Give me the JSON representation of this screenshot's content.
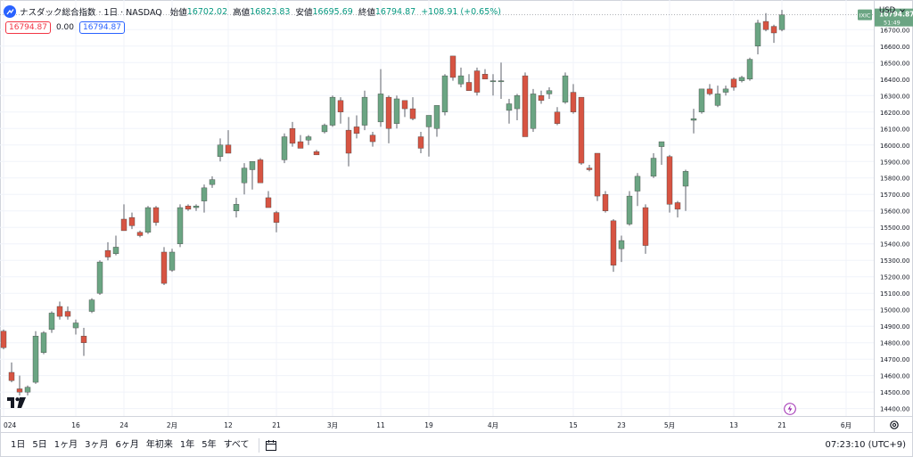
{
  "header": {
    "title": "ナスダック総合指数 · 1日 · NASDAQ",
    "open_label": "始値",
    "open_value": "16702.02",
    "high_label": "高値",
    "high_value": "16823.83",
    "low_label": "安値",
    "low_value": "16695.69",
    "close_label": "終値",
    "close_value": "16794.87",
    "change": "+108.91 (+0.65%)"
  },
  "order_pills": {
    "sell": "16794.87",
    "spread": "0.00",
    "buy": "16794.87"
  },
  "currency": "USD",
  "last_price": {
    "symbol": "IXIC",
    "price": "16794.87",
    "countdown": "51:49"
  },
  "bottom_bar": {
    "ranges": [
      "1日",
      "5日",
      "1ヶ月",
      "3ヶ月",
      "6ヶ月",
      "年初来",
      "1年",
      "5年",
      "すべて"
    ],
    "clock": "07:23:10 (UTC+9)"
  },
  "colors": {
    "up": "#6ba583",
    "down": "#d75442",
    "wick": "#5d606b",
    "grid": "#f0f3fa",
    "accent": "#2962ff"
  },
  "chart_data": {
    "type": "candlestick",
    "y_tick_labels": [
      "14400.00",
      "14500.00",
      "14600.00",
      "14700.00",
      "14800.00",
      "14900.00",
      "15000.00",
      "15100.00",
      "15200.00",
      "15300.00",
      "15400.00",
      "15500.00",
      "15600.00",
      "15700.00",
      "15800.00",
      "15900.00",
      "16000.00",
      "16100.00",
      "16200.00",
      "16300.00",
      "16400.00",
      "16500.00",
      "16600.00",
      "16700.00"
    ],
    "ylim": [
      14355,
      16880
    ],
    "x_tick_labels": [
      {
        "label": "024",
        "index": 0
      },
      {
        "label": "16",
        "index": 9
      },
      {
        "label": "24",
        "index": 15
      },
      {
        "label": "2月",
        "index": 21
      },
      {
        "label": "12",
        "index": 28
      },
      {
        "label": "21",
        "index": 34
      },
      {
        "label": "3月",
        "index": 41
      },
      {
        "label": "11",
        "index": 47
      },
      {
        "label": "19",
        "index": 53
      },
      {
        "label": "4月",
        "index": 61
      },
      {
        "label": "15",
        "index": 71
      },
      {
        "label": "23",
        "index": 77
      },
      {
        "label": "5月",
        "index": 83
      },
      {
        "label": "13",
        "index": 91
      },
      {
        "label": "21",
        "index": 97
      },
      {
        "label": "6月",
        "index": 105
      }
    ],
    "candles": [
      {
        "o": 14870,
        "h": 14880,
        "l": 14760,
        "c": 14770
      },
      {
        "o": 14620,
        "h": 14680,
        "l": 14560,
        "c": 14570
      },
      {
        "o": 14520,
        "h": 14600,
        "l": 14480,
        "c": 14500
      },
      {
        "o": 14500,
        "h": 14540,
        "l": 14480,
        "c": 14530
      },
      {
        "o": 14560,
        "h": 14870,
        "l": 14550,
        "c": 14840
      },
      {
        "o": 14740,
        "h": 14870,
        "l": 14730,
        "c": 14860
      },
      {
        "o": 14880,
        "h": 14990,
        "l": 14860,
        "c": 14980
      },
      {
        "o": 15020,
        "h": 15050,
        "l": 14940,
        "c": 14960
      },
      {
        "o": 14990,
        "h": 15020,
        "l": 14940,
        "c": 14960
      },
      {
        "o": 14890,
        "h": 14940,
        "l": 14850,
        "c": 14920
      },
      {
        "o": 14840,
        "h": 14890,
        "l": 14720,
        "c": 14800
      },
      {
        "o": 14990,
        "h": 15070,
        "l": 14980,
        "c": 15060
      },
      {
        "o": 15100,
        "h": 15300,
        "l": 15090,
        "c": 15290
      },
      {
        "o": 15360,
        "h": 15410,
        "l": 15300,
        "c": 15320
      },
      {
        "o": 15340,
        "h": 15450,
        "l": 15330,
        "c": 15380
      },
      {
        "o": 15550,
        "h": 15640,
        "l": 15480,
        "c": 15480
      },
      {
        "o": 15560,
        "h": 15590,
        "l": 15490,
        "c": 15510
      },
      {
        "o": 15470,
        "h": 15480,
        "l": 15440,
        "c": 15450
      },
      {
        "o": 15470,
        "h": 15630,
        "l": 15460,
        "c": 15620
      },
      {
        "o": 15620,
        "h": 15630,
        "l": 15510,
        "c": 15530
      },
      {
        "o": 15350,
        "h": 15380,
        "l": 15150,
        "c": 15160
      },
      {
        "o": 15240,
        "h": 15370,
        "l": 15230,
        "c": 15350
      },
      {
        "o": 15400,
        "h": 15640,
        "l": 15380,
        "c": 15620
      },
      {
        "o": 15630,
        "h": 15640,
        "l": 15600,
        "c": 15610
      },
      {
        "o": 15620,
        "h": 15640,
        "l": 15600,
        "c": 15630
      },
      {
        "o": 15660,
        "h": 15760,
        "l": 15590,
        "c": 15740
      },
      {
        "o": 15760,
        "h": 15810,
        "l": 15740,
        "c": 15790
      },
      {
        "o": 15930,
        "h": 16040,
        "l": 15900,
        "c": 16000
      },
      {
        "o": 16000,
        "h": 16090,
        "l": 15950,
        "c": 15950
      },
      {
        "o": 15600,
        "h": 15680,
        "l": 15560,
        "c": 15640
      },
      {
        "o": 15770,
        "h": 15890,
        "l": 15700,
        "c": 15860
      },
      {
        "o": 15850,
        "h": 15900,
        "l": 15730,
        "c": 15900
      },
      {
        "o": 15910,
        "h": 15920,
        "l": 15790,
        "c": 15770
      },
      {
        "o": 15680,
        "h": 15720,
        "l": 15620,
        "c": 15620
      },
      {
        "o": 15590,
        "h": 15600,
        "l": 15470,
        "c": 15530
      },
      {
        "o": 15910,
        "h": 16070,
        "l": 15890,
        "c": 16050
      },
      {
        "o": 16100,
        "h": 16140,
        "l": 15990,
        "c": 16010
      },
      {
        "o": 16020,
        "h": 16060,
        "l": 15980,
        "c": 15980
      },
      {
        "o": 16030,
        "h": 16060,
        "l": 16000,
        "c": 16050
      },
      {
        "o": 15960,
        "h": 15970,
        "l": 15940,
        "c": 15940
      },
      {
        "o": 16080,
        "h": 16130,
        "l": 16070,
        "c": 16120
      },
      {
        "o": 16120,
        "h": 16300,
        "l": 16110,
        "c": 16290
      },
      {
        "o": 16270,
        "h": 16290,
        "l": 16130,
        "c": 16200
      },
      {
        "o": 16090,
        "h": 16170,
        "l": 15870,
        "c": 15950
      },
      {
        "o": 16110,
        "h": 16180,
        "l": 16040,
        "c": 16070
      },
      {
        "o": 16120,
        "h": 16330,
        "l": 16090,
        "c": 16290
      },
      {
        "o": 16060,
        "h": 16080,
        "l": 15990,
        "c": 16020
      },
      {
        "o": 16140,
        "h": 16460,
        "l": 16110,
        "c": 16310
      },
      {
        "o": 16290,
        "h": 16300,
        "l": 16010,
        "c": 16100
      },
      {
        "o": 16130,
        "h": 16300,
        "l": 16100,
        "c": 16280
      },
      {
        "o": 16270,
        "h": 16260,
        "l": 16170,
        "c": 16220
      },
      {
        "o": 16220,
        "h": 16290,
        "l": 16150,
        "c": 16160
      },
      {
        "o": 16050,
        "h": 16080,
        "l": 15950,
        "c": 15980
      },
      {
        "o": 16110,
        "h": 16180,
        "l": 15930,
        "c": 16180
      },
      {
        "o": 16100,
        "h": 16240,
        "l": 16050,
        "c": 16240
      },
      {
        "o": 16200,
        "h": 16430,
        "l": 16180,
        "c": 16420
      },
      {
        "o": 16540,
        "h": 16540,
        "l": 16390,
        "c": 16410
      },
      {
        "o": 16370,
        "h": 16470,
        "l": 16350,
        "c": 16420
      },
      {
        "o": 16380,
        "h": 16430,
        "l": 16330,
        "c": 16330
      },
      {
        "o": 16450,
        "h": 16470,
        "l": 16300,
        "c": 16320
      },
      {
        "o": 16430,
        "h": 16460,
        "l": 16400,
        "c": 16400
      },
      {
        "o": 16390,
        "h": 16430,
        "l": 16300,
        "c": 16390
      },
      {
        "o": 16390,
        "h": 16500,
        "l": 16280,
        "c": 16390
      },
      {
        "o": 16210,
        "h": 16280,
        "l": 16130,
        "c": 16250
      },
      {
        "o": 16220,
        "h": 16310,
        "l": 16150,
        "c": 16300
      },
      {
        "o": 16420,
        "h": 16440,
        "l": 16050,
        "c": 16050
      },
      {
        "o": 16100,
        "h": 16340,
        "l": 16080,
        "c": 16310
      },
      {
        "o": 16300,
        "h": 16330,
        "l": 16250,
        "c": 16270
      },
      {
        "o": 16310,
        "h": 16350,
        "l": 16280,
        "c": 16330
      },
      {
        "o": 16200,
        "h": 16230,
        "l": 16120,
        "c": 16130
      },
      {
        "o": 16260,
        "h": 16440,
        "l": 16250,
        "c": 16420
      },
      {
        "o": 16320,
        "h": 16370,
        "l": 16190,
        "c": 16200
      },
      {
        "o": 16290,
        "h": 16290,
        "l": 15880,
        "c": 15890
      },
      {
        "o": 15860,
        "h": 15880,
        "l": 15840,
        "c": 15850
      },
      {
        "o": 15950,
        "h": 15950,
        "l": 15660,
        "c": 15690
      },
      {
        "o": 15700,
        "h": 15720,
        "l": 15590,
        "c": 15600
      },
      {
        "o": 15540,
        "h": 15550,
        "l": 15230,
        "c": 15270
      },
      {
        "o": 15370,
        "h": 15450,
        "l": 15290,
        "c": 15420
      },
      {
        "o": 15520,
        "h": 15720,
        "l": 15510,
        "c": 15690
      },
      {
        "o": 15720,
        "h": 15830,
        "l": 15630,
        "c": 15810
      },
      {
        "o": 15620,
        "h": 15640,
        "l": 15340,
        "c": 15390
      },
      {
        "o": 15810,
        "h": 15950,
        "l": 15800,
        "c": 15920
      },
      {
        "o": 15990,
        "h": 16020,
        "l": 15880,
        "c": 16020
      },
      {
        "o": 15930,
        "h": 15940,
        "l": 15590,
        "c": 15640
      },
      {
        "o": 15650,
        "h": 15660,
        "l": 15560,
        "c": 15610
      },
      {
        "o": 15750,
        "h": 15850,
        "l": 15600,
        "c": 15840
      },
      {
        "o": 16150,
        "h": 16220,
        "l": 16070,
        "c": 16160
      },
      {
        "o": 16200,
        "h": 16340,
        "l": 16190,
        "c": 16340
      },
      {
        "o": 16340,
        "h": 16370,
        "l": 16300,
        "c": 16310
      },
      {
        "o": 16240,
        "h": 16360,
        "l": 16230,
        "c": 16310
      },
      {
        "o": 16320,
        "h": 16360,
        "l": 16300,
        "c": 16340
      },
      {
        "o": 16400,
        "h": 16410,
        "l": 16330,
        "c": 16350
      },
      {
        "o": 16390,
        "h": 16420,
        "l": 16380,
        "c": 16410
      },
      {
        "o": 16400,
        "h": 16530,
        "l": 16390,
        "c": 16520
      },
      {
        "o": 16600,
        "h": 16760,
        "l": 16550,
        "c": 16740
      },
      {
        "o": 16750,
        "h": 16800,
        "l": 16690,
        "c": 16700
      },
      {
        "o": 16720,
        "h": 16730,
        "l": 16620,
        "c": 16680
      },
      {
        "o": 16700,
        "h": 16820,
        "l": 16690,
        "c": 16790
      }
    ]
  }
}
